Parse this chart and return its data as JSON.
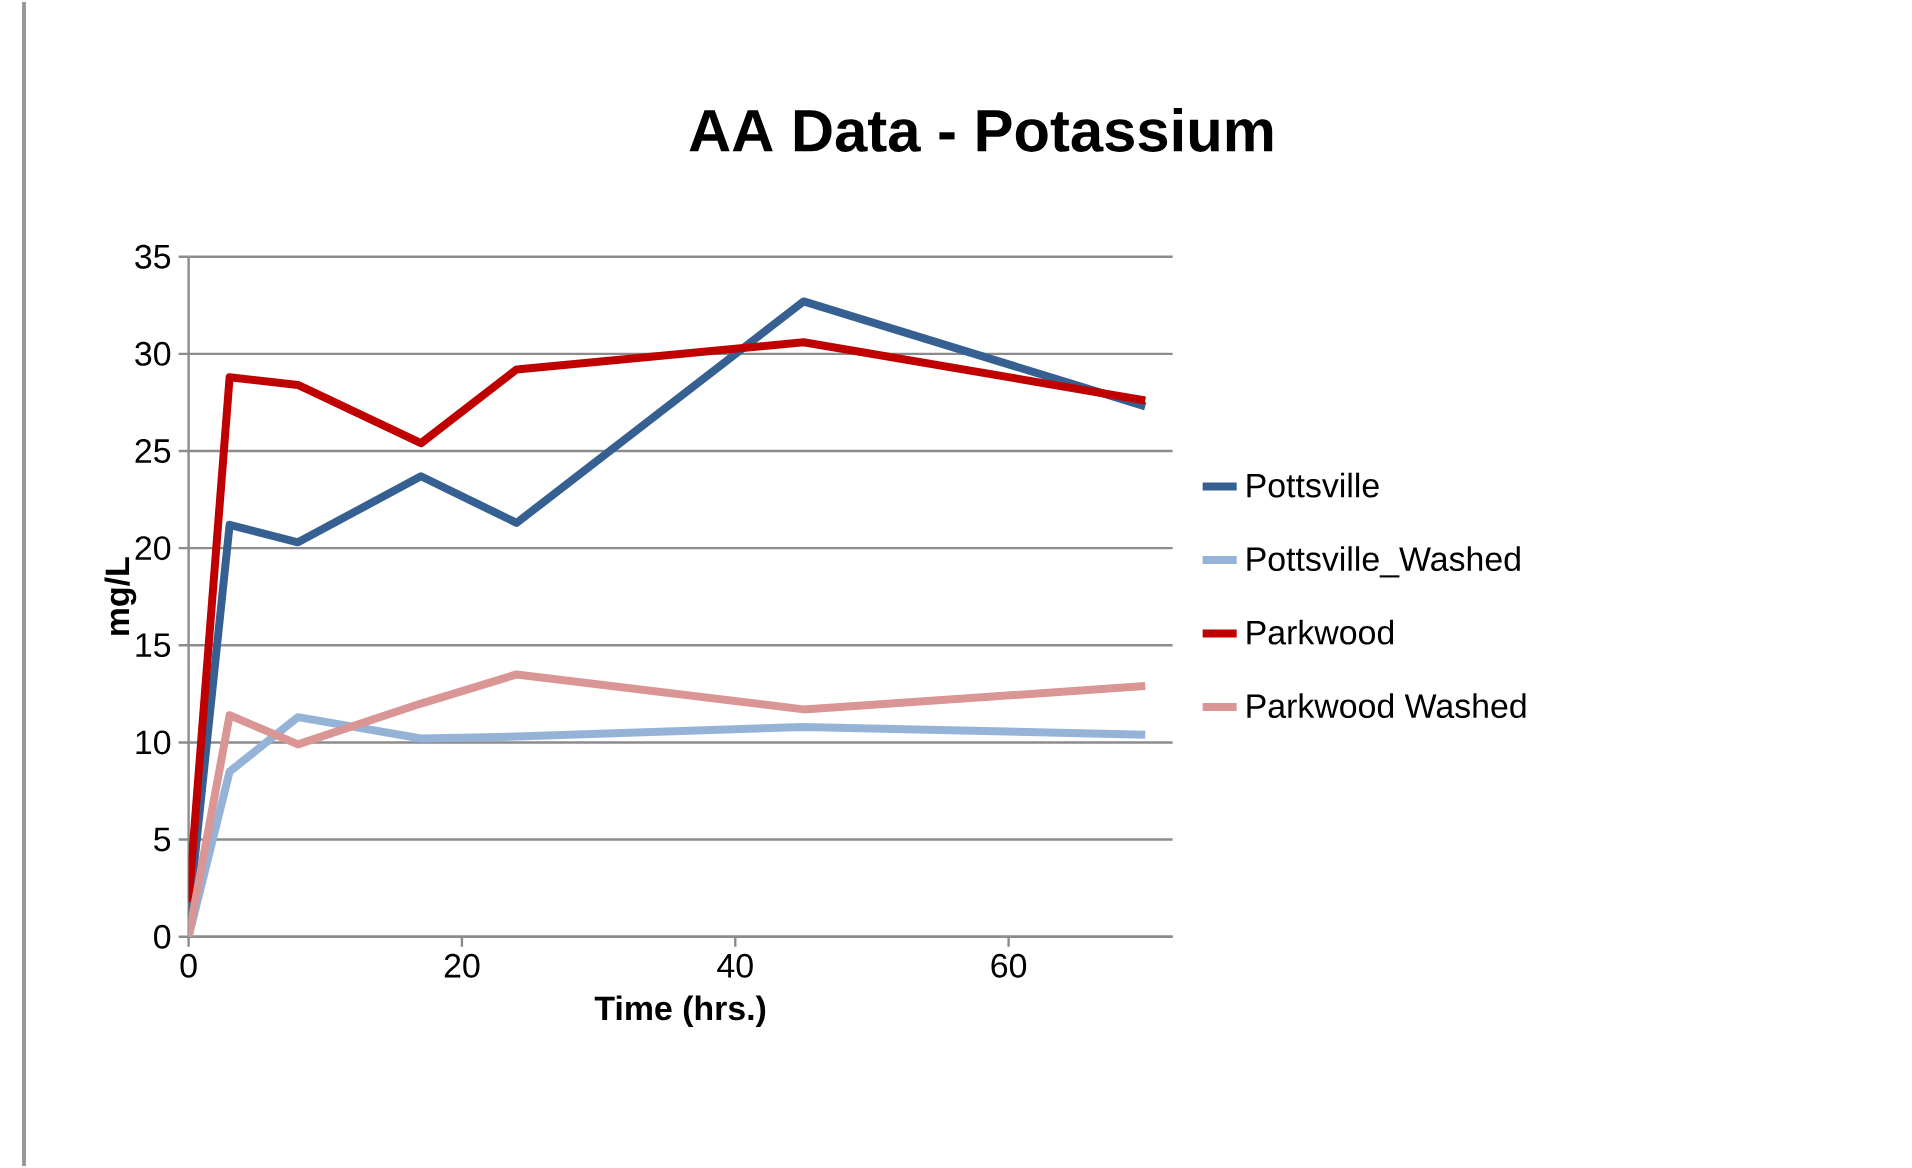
{
  "chart_data": {
    "type": "line",
    "title": "AA Data - Potassium",
    "xlabel": "Time (hrs.)",
    "ylabel": "mg/L",
    "series": [
      {
        "name": "Pottsville",
        "color": "#376092",
        "x": [
          0,
          3,
          8,
          17,
          24,
          45,
          70
        ],
        "values": [
          1,
          21.2,
          20.3,
          23.7,
          21.3,
          32.7,
          27.3
        ]
      },
      {
        "name": "Pottsville_Washed",
        "color": "#95b3d7",
        "x": [
          0,
          3,
          8,
          17,
          24,
          45,
          70
        ],
        "values": [
          0,
          8.5,
          11.3,
          10.2,
          10.3,
          10.8,
          10.4
        ]
      },
      {
        "name": "Parkwood",
        "color": "#c00000",
        "x": [
          0,
          3,
          8,
          17,
          24,
          45,
          70
        ],
        "values": [
          1.8,
          28.8,
          28.4,
          25.4,
          29.2,
          30.6,
          27.6
        ]
      },
      {
        "name": "Parkwood Washed",
        "color": "#d99694",
        "x": [
          0,
          3,
          8,
          17,
          24,
          45,
          70
        ],
        "values": [
          0,
          11.4,
          9.9,
          12,
          13.5,
          11.7,
          12.9
        ]
      }
    ],
    "xlim": [
      0,
      72
    ],
    "ylim": [
      0,
      35
    ],
    "xticks": [
      0,
      20,
      40,
      60
    ],
    "yticks": [
      0,
      5,
      10,
      15,
      20,
      25,
      30,
      35
    ],
    "grid": "y",
    "legend": "right",
    "marker": "none",
    "line_style": "solid"
  }
}
